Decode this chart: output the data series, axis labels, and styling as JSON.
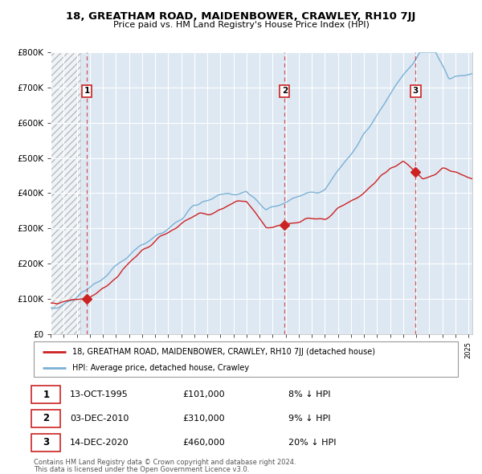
{
  "title": "18, GREATHAM ROAD, MAIDENBOWER, CRAWLEY, RH10 7JJ",
  "subtitle": "Price paid vs. HM Land Registry's House Price Index (HPI)",
  "transactions": [
    {
      "label": "1",
      "date": "13-OCT-1995",
      "price": 101000,
      "pct": "8%",
      "direction": "↓",
      "year_float": 1995.78
    },
    {
      "label": "2",
      "date": "03-DEC-2010",
      "price": 310000,
      "pct": "9%",
      "direction": "↓",
      "year_float": 2010.92
    },
    {
      "label": "3",
      "date": "14-DEC-2020",
      "price": 460000,
      "pct": "20%",
      "direction": "↓",
      "year_float": 2020.95
    }
  ],
  "legend_line1": "18, GREATHAM ROAD, MAIDENBOWER, CRAWLEY, RH10 7JJ (detached house)",
  "legend_line2": "HPI: Average price, detached house, Crawley",
  "footer1": "Contains HM Land Registry data © Crown copyright and database right 2024.",
  "footer2": "This data is licensed under the Open Government Licence v3.0.",
  "hpi_color": "#7ab0d4",
  "price_color": "#cc2222",
  "bg_color": "#dde8f3",
  "grid_color": "#ffffff",
  "ylim": [
    0,
    800000
  ],
  "xlim_start": 1993.0,
  "xlim_end": 2025.3
}
